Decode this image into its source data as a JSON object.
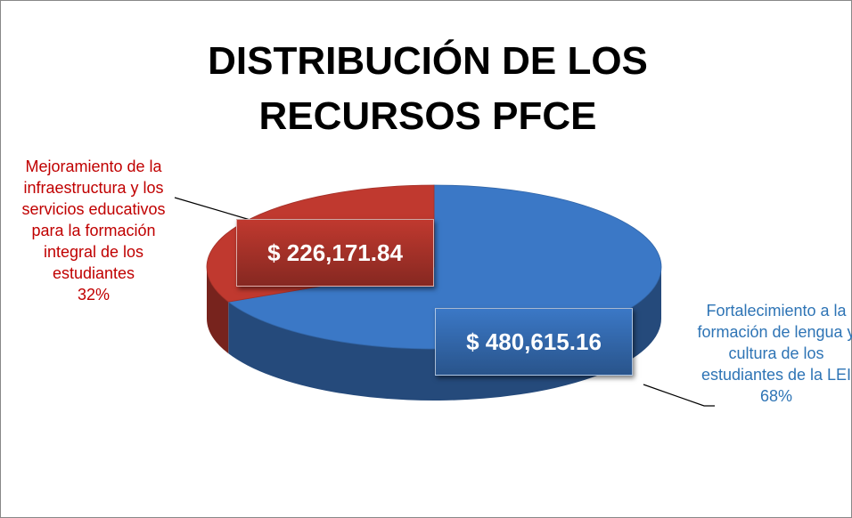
{
  "chart_data": {
    "type": "pie",
    "title": "DISTRIBUCIÓN DE LOS RECURSOS PFCE",
    "categories": [
      "Mejoramiento de la infraestructura y los servicios educativos para la formación integral de los estudiantes",
      "Fortalecimiento a la formación de lengua y cultura de los estudiantes de la LEI"
    ],
    "values": [
      226171.84,
      480615.16
    ],
    "value_labels": [
      "$ 226,171.84",
      "$ 480,615.16"
    ],
    "percents": [
      32,
      68
    ],
    "percent_labels": [
      "32%",
      "68%"
    ],
    "colors": [
      "#c0392f",
      "#3b78c6"
    ],
    "label_colors": [
      "#c00000",
      "#2e74b5"
    ]
  }
}
